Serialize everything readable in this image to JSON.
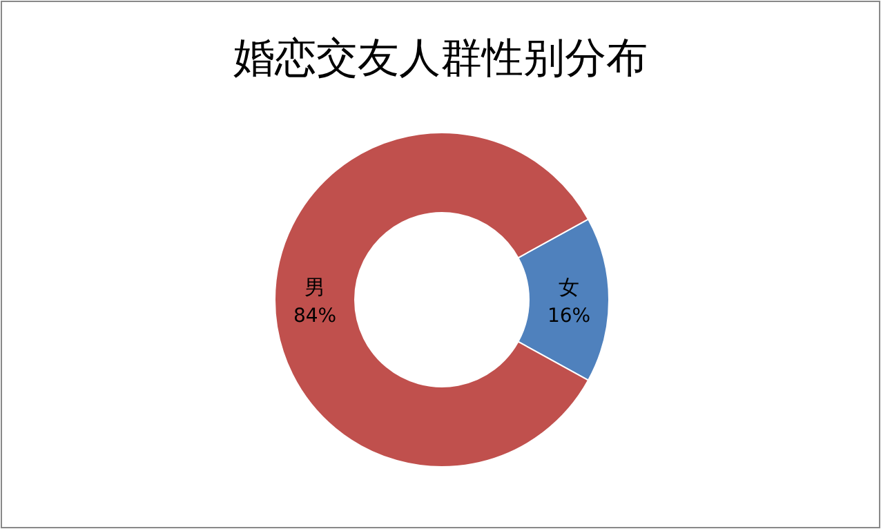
{
  "chart_data": {
    "type": "donut",
    "title": "婚恋交友人群性别分布",
    "categories": [
      "女",
      "男"
    ],
    "values": [
      16,
      84
    ],
    "colors": [
      "#4f81bd",
      "#c0504d"
    ],
    "value_labels": [
      "16%",
      "84%"
    ]
  }
}
